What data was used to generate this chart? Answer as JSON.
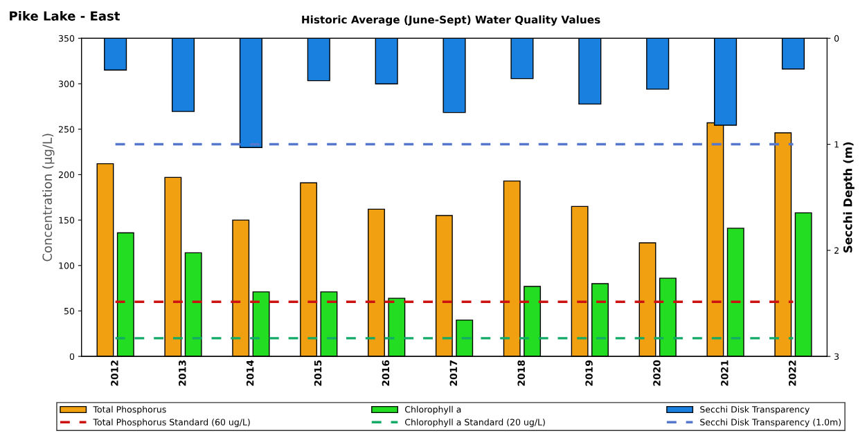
{
  "chart_data": {
    "type": "bar",
    "title": "Pike Lake - East",
    "subtitle": "Historic Average (June-Sept) Water Quality Values",
    "ylabel": "Concentration (µg/L)",
    "y2label": "Secchi Depth (m)",
    "categories": [
      "2012",
      "2013",
      "2014",
      "2015",
      "2016",
      "2017",
      "2018",
      "2019",
      "2020",
      "2021",
      "2022"
    ],
    "series": [
      {
        "name": "Total Phosphorus",
        "color": "#f0a010",
        "values": [
          212,
          197,
          150,
          191,
          162,
          155,
          193,
          165,
          125,
          257,
          246
        ]
      },
      {
        "name": "Chlorophyll a",
        "color": "#22dd22",
        "values": [
          136,
          114,
          71,
          71,
          64,
          40,
          77,
          80,
          86,
          141,
          158
        ]
      },
      {
        "name": "Secchi Disk Transparency",
        "color": "#1a80e0",
        "axis": "y2",
        "values": [
          0.3,
          0.69,
          1.03,
          0.4,
          0.43,
          0.7,
          0.38,
          0.62,
          0.48,
          0.82,
          0.29
        ]
      }
    ],
    "ylim": [
      0,
      350
    ],
    "yticks": [
      0,
      50,
      100,
      150,
      200,
      250,
      300,
      350
    ],
    "y2lim": [
      3,
      0
    ],
    "y2ticks": [
      0,
      1,
      2,
      3
    ],
    "ref_lines": [
      {
        "axis": "y",
        "value": 60,
        "label": "Total Phosphorus Standard (60 ug/L)",
        "color": "#cc1111",
        "line_style": "dashed"
      },
      {
        "axis": "y",
        "value": 20,
        "label": "Chlorophyll a Standard (20 ug/L)",
        "color": "#11aa66",
        "line_style": "dashed"
      },
      {
        "axis": "y2",
        "value": 1,
        "label": "Secchi Disk Transparency (1.0m)",
        "color": "#5577cc",
        "line_style": "dashed"
      }
    ],
    "grid": false,
    "legend": "bottom"
  }
}
